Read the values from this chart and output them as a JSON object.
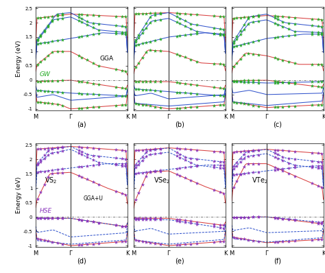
{
  "panels": [
    {
      "label": "(a)",
      "row": 0,
      "col": 0
    },
    {
      "label": "(b)",
      "row": 0,
      "col": 1
    },
    {
      "label": "(c)",
      "row": 0,
      "col": 2
    },
    {
      "label": "(d)",
      "row": 1,
      "col": 0
    },
    {
      "label": "(e)",
      "row": 1,
      "col": 1
    },
    {
      "label": "(f)",
      "row": 1,
      "col": 2
    }
  ],
  "ylim": [
    -1.05,
    2.55
  ],
  "yticks": [
    -1.0,
    -0.5,
    0.0,
    0.5,
    1.0,
    1.5,
    2.0,
    2.5
  ],
  "ytick_labels": [
    "-1",
    "-0.5",
    "0",
    "0.5",
    "1",
    "1.5",
    "2",
    "2.5"
  ],
  "xtick_labels": [
    "M",
    "Γ",
    "K"
  ],
  "spin_up_color": "#d94040",
  "spin_dn_color": "#3355cc",
  "gw_color": "#22aa22",
  "hse_color": "#8833bb",
  "fermi_color": "#666666",
  "vline_color": "#333333",
  "background": "#ffffff",
  "kG": 0.38
}
